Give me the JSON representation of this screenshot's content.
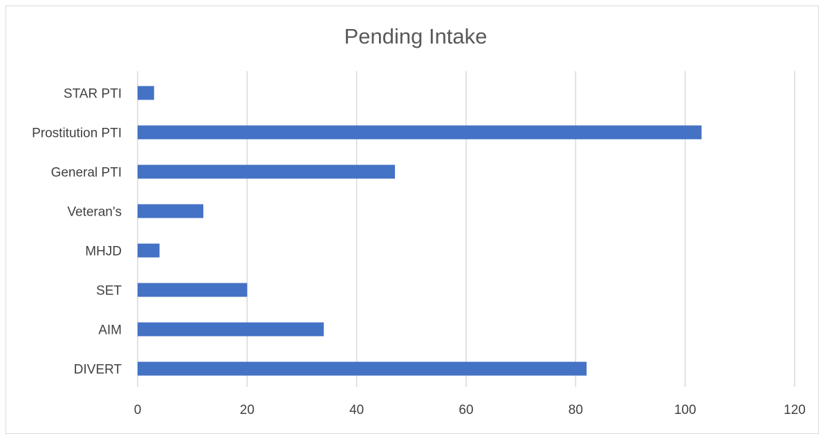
{
  "chart_data": {
    "type": "bar",
    "orientation": "horizontal",
    "title": "Pending Intake",
    "xlabel": "",
    "ylabel": "",
    "categories": [
      "STAR PTI",
      "Prostitution PTI",
      "General PTI",
      "Veteran's",
      "MHJD",
      "SET",
      "AIM",
      "DIVERT"
    ],
    "values": [
      3,
      103,
      47,
      12,
      4,
      20,
      34,
      82
    ],
    "xlim": [
      0,
      120
    ],
    "xticks": [
      0,
      20,
      40,
      60,
      80,
      100,
      120
    ],
    "grid": true,
    "bar_color": "#4472C4"
  }
}
